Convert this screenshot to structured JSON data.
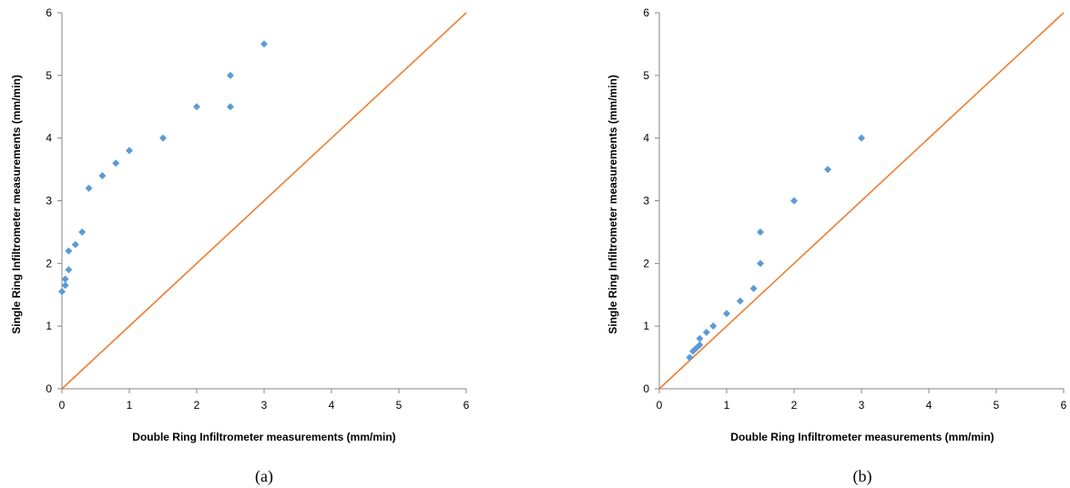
{
  "colors": {
    "points": "#5B9BD5",
    "line": "#ED7D31",
    "axis": "#868686"
  },
  "chart_data": [
    {
      "type": "scatter",
      "caption": "(a)",
      "xlabel": "Double Ring  Infiltrometer measurements (mm/min)",
      "ylabel": "Single Ring Infiltrometer measurements  (mm/min)",
      "xlim": [
        0,
        6
      ],
      "ylim": [
        0,
        6
      ],
      "xticks": [
        "0",
        "1",
        "2",
        "3",
        "4",
        "5",
        "6"
      ],
      "yticks": [
        "0",
        "1",
        "2",
        "3",
        "4",
        "5",
        "6"
      ],
      "grid": false,
      "reference_line": {
        "x": [
          0,
          6
        ],
        "y": [
          0,
          6
        ]
      },
      "points": [
        {
          "x": 0.0,
          "y": 1.55
        },
        {
          "x": 0.05,
          "y": 1.65
        },
        {
          "x": 0.05,
          "y": 1.75
        },
        {
          "x": 0.1,
          "y": 1.9
        },
        {
          "x": 0.1,
          "y": 2.2
        },
        {
          "x": 0.2,
          "y": 2.3
        },
        {
          "x": 0.3,
          "y": 2.5
        },
        {
          "x": 0.4,
          "y": 3.2
        },
        {
          "x": 0.6,
          "y": 3.4
        },
        {
          "x": 0.8,
          "y": 3.6
        },
        {
          "x": 1.0,
          "y": 3.8
        },
        {
          "x": 1.5,
          "y": 4.0
        },
        {
          "x": 2.0,
          "y": 4.5
        },
        {
          "x": 2.5,
          "y": 4.5
        },
        {
          "x": 2.5,
          "y": 5.0
        },
        {
          "x": 3.0,
          "y": 5.5
        }
      ]
    },
    {
      "type": "scatter",
      "caption": "(b)",
      "xlabel": "Double Ring  Infiltrometer measurements (mm/min)",
      "ylabel": "Single Ring Infiltrometer measurements  (mm/min)",
      "xlim": [
        0,
        6
      ],
      "ylim": [
        0,
        6
      ],
      "xticks": [
        "0",
        "1",
        "2",
        "3",
        "4",
        "5",
        "6"
      ],
      "yticks": [
        "0",
        "1",
        "2",
        "3",
        "4",
        "5",
        "6"
      ],
      "grid": false,
      "reference_line": {
        "x": [
          0,
          6
        ],
        "y": [
          0,
          6
        ]
      },
      "points": [
        {
          "x": 0.45,
          "y": 0.5
        },
        {
          "x": 0.5,
          "y": 0.6
        },
        {
          "x": 0.55,
          "y": 0.65
        },
        {
          "x": 0.6,
          "y": 0.7
        },
        {
          "x": 0.6,
          "y": 0.8
        },
        {
          "x": 0.7,
          "y": 0.9
        },
        {
          "x": 0.8,
          "y": 1.0
        },
        {
          "x": 1.0,
          "y": 1.2
        },
        {
          "x": 1.2,
          "y": 1.4
        },
        {
          "x": 1.4,
          "y": 1.6
        },
        {
          "x": 1.5,
          "y": 2.0
        },
        {
          "x": 1.5,
          "y": 2.5
        },
        {
          "x": 2.0,
          "y": 3.0
        },
        {
          "x": 2.5,
          "y": 3.5
        },
        {
          "x": 3.0,
          "y": 4.0
        }
      ]
    }
  ]
}
